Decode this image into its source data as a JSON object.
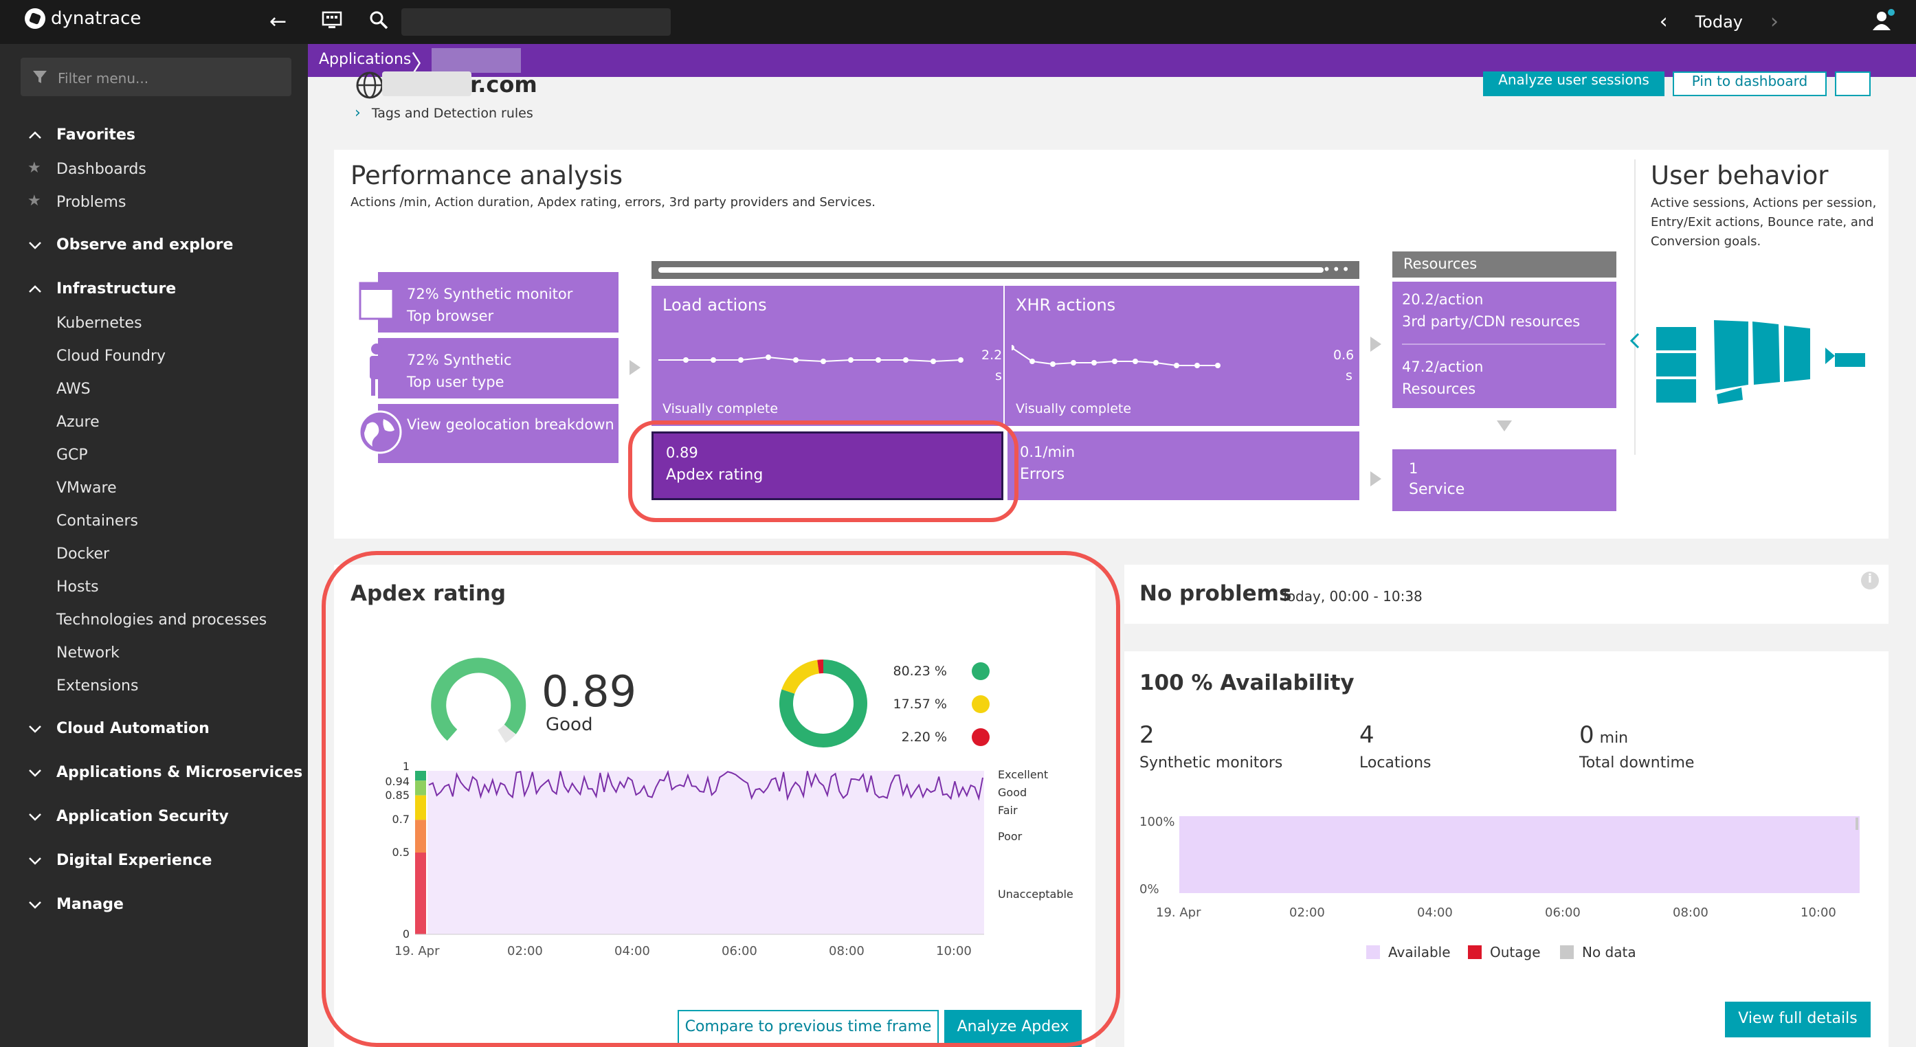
{
  "topbar": {
    "brand": "dynatrace",
    "timeframe": "Today"
  },
  "sidebar": {
    "filter_placeholder": "Filter menu...",
    "sections": [
      {
        "label": "Favorites"
      },
      {
        "label": "Dashboards"
      },
      {
        "label": "Problems"
      },
      {
        "label": "Observe and explore"
      },
      {
        "label": "Infrastructure"
      },
      {
        "label": "Kubernetes"
      },
      {
        "label": "Cloud Foundry"
      },
      {
        "label": "AWS"
      },
      {
        "label": "Azure"
      },
      {
        "label": "GCP"
      },
      {
        "label": "VMware"
      },
      {
        "label": "Containers"
      },
      {
        "label": "Docker"
      },
      {
        "label": "Hosts"
      },
      {
        "label": "Technologies and processes"
      },
      {
        "label": "Network"
      },
      {
        "label": "Extensions"
      },
      {
        "label": "Cloud Automation"
      },
      {
        "label": "Applications & Microservices"
      },
      {
        "label": "Application Security"
      },
      {
        "label": "Digital Experience"
      },
      {
        "label": "Manage"
      }
    ]
  },
  "breadcrumb": {
    "root": "Applications"
  },
  "app": {
    "title_suffix": "r.com",
    "tags_link": "Tags and Detection rules",
    "btn_analyze_sessions": "Analyze user sessions",
    "btn_pin": "Pin to dashboard"
  },
  "performance": {
    "title": "Performance analysis",
    "subtitle": "Actions /min, Action duration, Apdex rating, errors, 3rd party providers and Services.",
    "synthetic_browser": [
      "72% Synthetic monitor",
      "Top browser"
    ],
    "synthetic_user": [
      "72% Synthetic",
      "Top user type"
    ],
    "geolocation": "View geolocation breakdown",
    "load_actions": {
      "title": "Load actions",
      "value": "2.2",
      "unit": "s",
      "metric": "Visually complete"
    },
    "xhr_actions": {
      "title": "XHR actions",
      "value": "0.6",
      "unit": "s",
      "metric": "Visually complete"
    },
    "apdex": {
      "value": "0.89",
      "label": "Apdex rating"
    },
    "errors": {
      "value": "0.1/min",
      "label": "Errors"
    },
    "resources": {
      "head": "Resources",
      "third_party": [
        "20.2/action",
        "3rd party/CDN resources"
      ],
      "resources": [
        "47.2/action",
        "Resources"
      ]
    },
    "service": {
      "count": "1",
      "label": "Service"
    }
  },
  "user_behavior": {
    "title": "User behavior",
    "subtitle": "Active sessions, Actions per session, Entry/Exit actions, Bounce rate, and Conversion goals."
  },
  "apdex_card": {
    "title": "Apdex rating",
    "score": "0.89",
    "score_label": "Good",
    "breakdown": [
      {
        "pct": "80.23 %",
        "status": "satisfied",
        "color": "#2ab06f"
      },
      {
        "pct": "17.57 %",
        "status": "tolerating",
        "color": "#f5d30f"
      },
      {
        "pct": "2.20 %",
        "status": "frustrated",
        "color": "#dc172a"
      }
    ],
    "legend": [
      "Excellent",
      "Good",
      "Fair",
      "Poor",
      "Unacceptable"
    ],
    "y_ticks": [
      "1",
      "0.94",
      "0.85",
      "0.7",
      "0.5",
      "0"
    ],
    "x_ticks": [
      "19. Apr",
      "02:00",
      "04:00",
      "06:00",
      "08:00",
      "10:00"
    ],
    "btn_compare": "Compare to previous time frame",
    "btn_analyze": "Analyze Apdex"
  },
  "problems": {
    "title": "No problems",
    "range": "Today, 00:00 - 10:38"
  },
  "availability": {
    "title": "100 % Availability",
    "stats": [
      {
        "num": "2",
        "unit": "",
        "label": "Synthetic monitors"
      },
      {
        "num": "4",
        "unit": "",
        "label": "Locations"
      },
      {
        "num": "0",
        "unit": "min",
        "label": "Total downtime"
      }
    ],
    "y_ticks": [
      "100%",
      "0%"
    ],
    "x_ticks": [
      "19. Apr",
      "02:00",
      "04:00",
      "06:00",
      "08:00",
      "10:00"
    ],
    "legend": [
      {
        "label": "Available",
        "color": "#e9d5fb"
      },
      {
        "label": "Outage",
        "color": "#dc172a"
      },
      {
        "label": "No data",
        "color": "#c9c9c9"
      }
    ],
    "btn_details": "View full details"
  }
}
